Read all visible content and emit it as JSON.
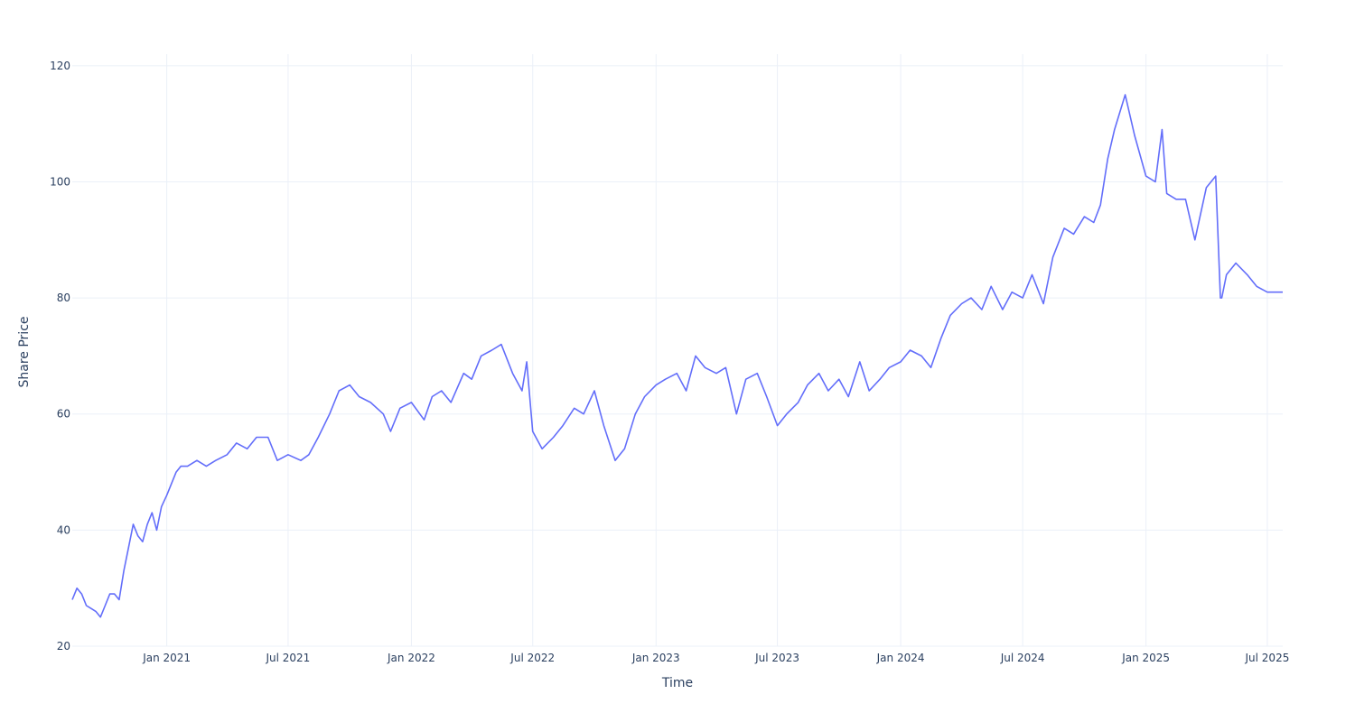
{
  "chart_data": {
    "type": "line",
    "title": "",
    "xlabel": "Time",
    "ylabel": "Share Price",
    "grid": true,
    "legend": "none",
    "line_color": "#636efa",
    "xlim": [
      "2020-08-13",
      "2025-07-24"
    ],
    "ylim": [
      20,
      122
    ],
    "x_ticks": [
      {
        "date": "2021-01-01",
        "label": "Jan 2021"
      },
      {
        "date": "2021-07-01",
        "label": "Jul 2021"
      },
      {
        "date": "2022-01-01",
        "label": "Jan 2022"
      },
      {
        "date": "2022-07-01",
        "label": "Jul 2022"
      },
      {
        "date": "2023-01-01",
        "label": "Jan 2023"
      },
      {
        "date": "2023-07-01",
        "label": "Jul 2023"
      },
      {
        "date": "2024-01-01",
        "label": "Jan 2024"
      },
      {
        "date": "2024-07-01",
        "label": "Jul 2024"
      },
      {
        "date": "2025-01-01",
        "label": "Jan 2025"
      },
      {
        "date": "2025-07-01",
        "label": "Jul 2025"
      }
    ],
    "y_ticks": [
      20,
      40,
      60,
      80,
      100,
      120
    ],
    "series": [
      {
        "x": [
          "2020-08-13",
          "2020-08-20",
          "2020-08-27",
          "2020-09-03",
          "2020-09-10",
          "2020-09-17",
          "2020-09-24",
          "2020-10-01",
          "2020-10-08",
          "2020-10-15",
          "2020-10-22",
          "2020-10-29",
          "2020-11-05",
          "2020-11-12",
          "2020-11-19",
          "2020-11-26",
          "2020-12-03",
          "2020-12-10",
          "2020-12-17",
          "2020-12-24",
          "2021-01-01",
          "2021-01-08",
          "2021-01-15",
          "2021-01-22",
          "2021-02-01",
          "2021-02-15",
          "2021-03-01",
          "2021-03-15",
          "2021-04-01",
          "2021-04-15",
          "2021-05-01",
          "2021-05-15",
          "2021-06-01",
          "2021-06-15",
          "2021-07-01",
          "2021-07-20",
          "2021-08-01",
          "2021-08-15",
          "2021-09-01",
          "2021-09-15",
          "2021-10-01",
          "2021-10-15",
          "2021-11-01",
          "2021-11-20",
          "2021-12-01",
          "2021-12-15",
          "2022-01-01",
          "2022-01-20",
          "2022-02-01",
          "2022-02-15",
          "2022-03-01",
          "2022-03-20",
          "2022-04-01",
          "2022-04-15",
          "2022-05-01",
          "2022-05-15",
          "2022-06-01",
          "2022-06-15",
          "2022-06-22",
          "2022-07-01",
          "2022-07-15",
          "2022-08-01",
          "2022-08-15",
          "2022-09-01",
          "2022-09-15",
          "2022-10-01",
          "2022-10-15",
          "2022-11-01",
          "2022-11-15",
          "2022-12-01",
          "2022-12-15",
          "2023-01-01",
          "2023-01-15",
          "2023-02-01",
          "2023-02-15",
          "2023-03-01",
          "2023-03-15",
          "2023-04-01",
          "2023-04-15",
          "2023-05-01",
          "2023-05-15",
          "2023-06-01",
          "2023-06-15",
          "2023-07-01",
          "2023-07-15",
          "2023-08-01",
          "2023-08-15",
          "2023-09-01",
          "2023-09-15",
          "2023-10-01",
          "2023-10-15",
          "2023-11-01",
          "2023-11-15",
          "2023-12-01",
          "2023-12-15",
          "2024-01-01",
          "2024-01-15",
          "2024-02-01",
          "2024-02-15",
          "2024-03-01",
          "2024-03-15",
          "2024-04-01",
          "2024-04-15",
          "2024-05-01",
          "2024-05-15",
          "2024-06-01",
          "2024-06-15",
          "2024-07-01",
          "2024-07-15",
          "2024-08-01",
          "2024-08-15",
          "2024-09-01",
          "2024-09-15",
          "2024-10-01",
          "2024-10-15",
          "2024-10-25",
          "2024-11-05",
          "2024-11-15",
          "2024-12-01",
          "2024-12-15",
          "2025-01-01",
          "2025-01-15",
          "2025-01-25",
          "2025-02-01",
          "2025-02-15",
          "2025-03-01",
          "2025-03-15",
          "2025-04-01",
          "2025-04-15",
          "2025-04-22",
          "2025-04-24",
          "2025-05-01",
          "2025-05-15",
          "2025-06-01",
          "2025-06-15",
          "2025-07-01",
          "2025-07-24"
        ],
        "y": [
          28,
          30,
          29,
          27,
          26.5,
          26,
          25,
          27,
          29,
          29,
          28,
          33,
          37,
          41,
          39,
          38,
          41,
          43,
          40,
          44,
          46,
          48,
          50,
          51,
          51,
          52,
          51,
          52,
          53,
          55,
          54,
          56,
          56,
          52,
          53,
          52,
          53,
          56,
          60,
          64,
          65,
          63,
          62,
          60,
          57,
          61,
          62,
          59,
          63,
          64,
          62,
          67,
          66,
          70,
          71,
          72,
          67,
          64,
          69,
          57,
          54,
          56,
          58,
          61,
          60,
          64,
          58,
          52,
          54,
          60,
          63,
          65,
          66,
          67,
          64,
          70,
          68,
          67,
          68,
          60,
          66,
          67,
          63,
          58,
          60,
          62,
          65,
          67,
          64,
          66,
          63,
          69,
          64,
          66,
          68,
          69,
          71,
          70,
          68,
          73,
          77,
          79,
          80,
          78,
          82,
          78,
          81,
          80,
          84,
          79,
          87,
          92,
          91,
          94,
          93,
          96,
          104,
          109,
          115,
          108,
          101,
          100,
          109,
          98,
          97,
          97,
          90,
          99,
          101,
          80,
          80,
          84,
          86,
          84,
          82,
          81,
          81
        ]
      }
    ]
  }
}
